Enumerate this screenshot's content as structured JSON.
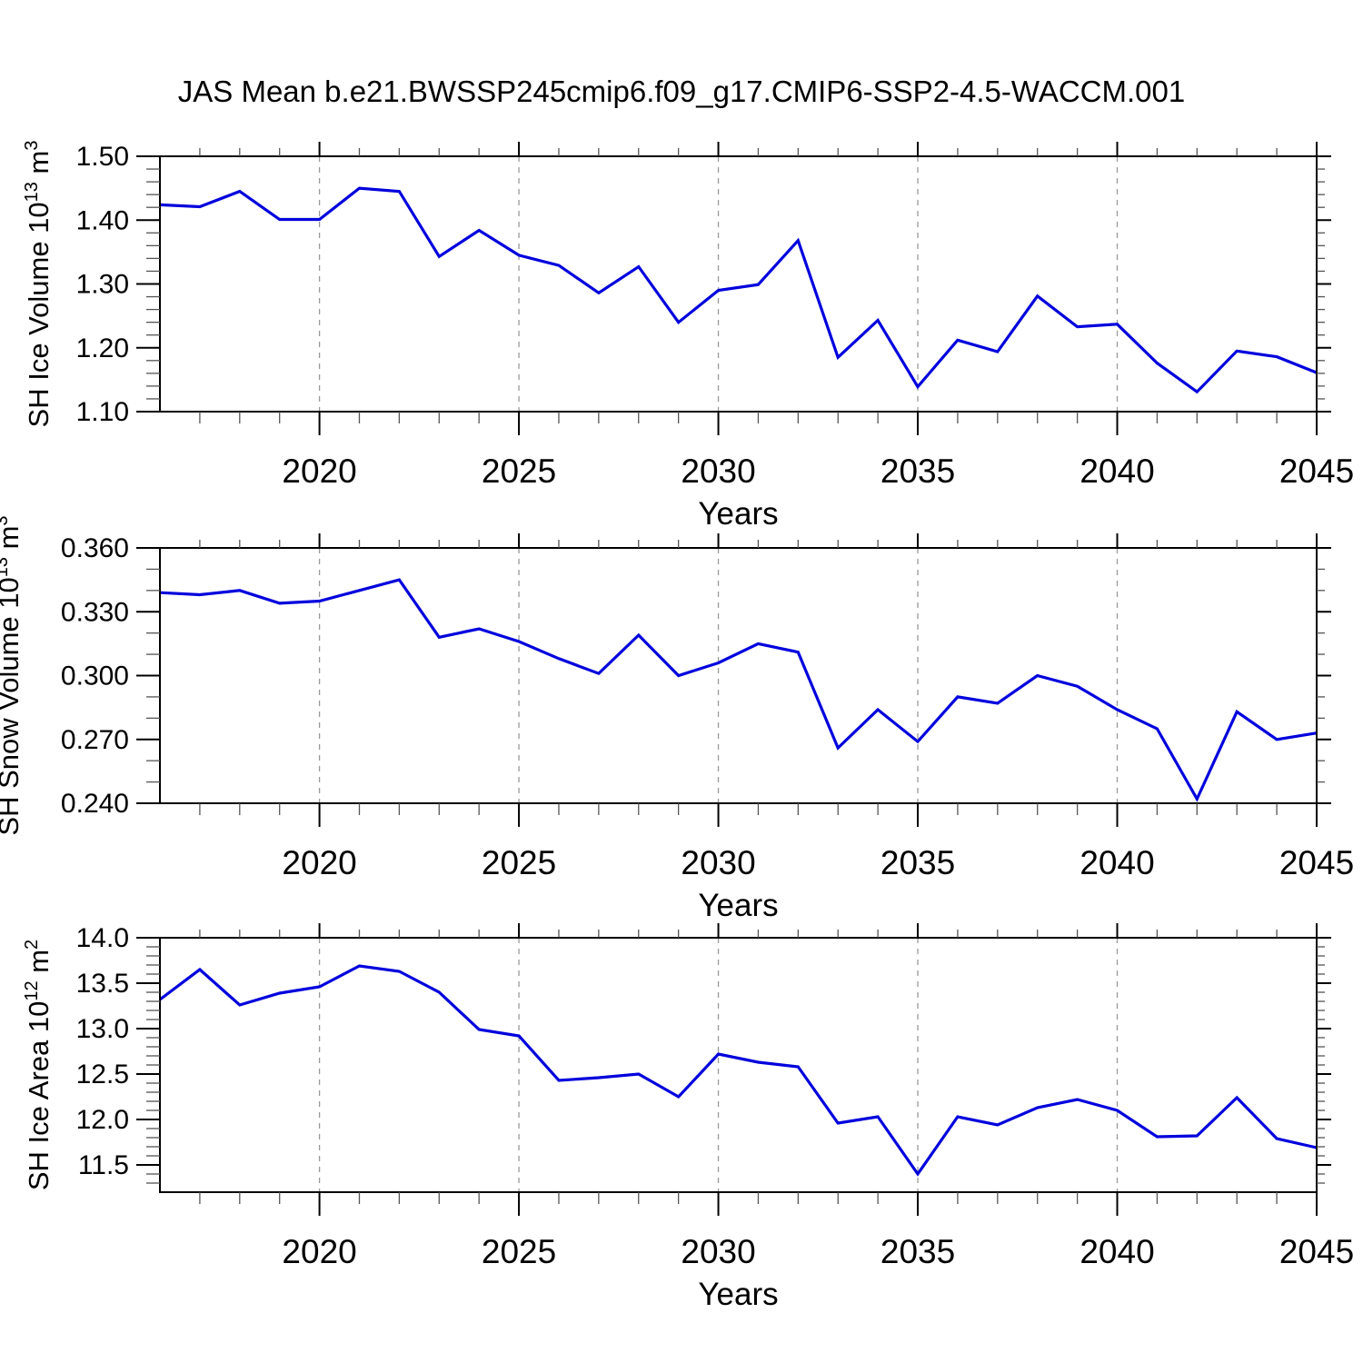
{
  "title": "JAS Mean b.e21.BWSSP245cmip6.f09_g17.CMIP6-SSP2-4.5-WACCM.001",
  "line_color": "#0000dd",
  "grid_color": "#999999",
  "axis_color": "#000000",
  "minor_tick_color": "#555555",
  "x_axis_label": "Years",
  "x_tick_labels": [
    "2020",
    "2025",
    "2030",
    "2035",
    "2040",
    "2045"
  ],
  "x_tick_years": [
    2020,
    2025,
    2030,
    2035,
    2040,
    2045
  ],
  "grid_years": [
    2020,
    2025,
    2030,
    2035,
    2040
  ],
  "chart_data": [
    {
      "type": "line",
      "name": "sh-ice-volume-panel",
      "ylabel_text": "SH Ice Volume 10^13 m^3",
      "ylabel_parts": [
        {
          "t": "SH Ice Volume 10",
          "sup": false
        },
        {
          "t": "13",
          "sup": true
        },
        {
          "t": " m",
          "sup": false
        },
        {
          "t": "3",
          "sup": true
        }
      ],
      "xlabel": "Years",
      "xlim": [
        2016,
        2045
      ],
      "ylim": [
        1.1,
        1.5
      ],
      "y_major_ticks": [
        1.1,
        1.2,
        1.3,
        1.4,
        1.5
      ],
      "y_tick_labels": [
        "1.10",
        "1.20",
        "1.30",
        "1.40",
        "1.50"
      ],
      "y_minor_step": 0.02,
      "x": [
        2016,
        2017,
        2018,
        2019,
        2020,
        2021,
        2022,
        2023,
        2024,
        2025,
        2026,
        2027,
        2028,
        2029,
        2030,
        2031,
        2032,
        2033,
        2034,
        2035,
        2036,
        2037,
        2038,
        2039,
        2040,
        2041,
        2042,
        2043,
        2044,
        2045
      ],
      "values": [
        1.424,
        1.421,
        1.445,
        1.401,
        1.401,
        1.45,
        1.445,
        1.343,
        1.384,
        1.345,
        1.329,
        1.286,
        1.327,
        1.24,
        1.29,
        1.299,
        1.368,
        1.185,
        1.243,
        1.139,
        1.212,
        1.194,
        1.281,
        1.233,
        1.237,
        1.176,
        1.131,
        1.195,
        1.186,
        1.161
      ]
    },
    {
      "type": "line",
      "name": "sh-snow-volume-panel",
      "ylabel_text": "SH Snow Volume 10^13 m^3",
      "ylabel_parts": [
        {
          "t": "SH Snow Volume 10",
          "sup": false
        },
        {
          "t": "13",
          "sup": true
        },
        {
          "t": " m",
          "sup": false
        },
        {
          "t": "3",
          "sup": true
        }
      ],
      "xlabel": "Years",
      "xlim": [
        2016,
        2045
      ],
      "ylim": [
        0.24,
        0.36
      ],
      "y_major_ticks": [
        0.24,
        0.27,
        0.3,
        0.33,
        0.36
      ],
      "y_tick_labels": [
        "0.240",
        "0.270",
        "0.300",
        "0.330",
        "0.360"
      ],
      "y_minor_step": 0.01,
      "x": [
        2016,
        2017,
        2018,
        2019,
        2020,
        2021,
        2022,
        2023,
        2024,
        2025,
        2026,
        2027,
        2028,
        2029,
        2030,
        2031,
        2032,
        2033,
        2034,
        2035,
        2036,
        2037,
        2038,
        2039,
        2040,
        2041,
        2042,
        2043,
        2044,
        2045
      ],
      "values": [
        0.339,
        0.338,
        0.34,
        0.334,
        0.335,
        0.34,
        0.345,
        0.318,
        0.322,
        0.316,
        0.308,
        0.301,
        0.319,
        0.3,
        0.306,
        0.315,
        0.311,
        0.266,
        0.284,
        0.269,
        0.29,
        0.287,
        0.3,
        0.295,
        0.284,
        0.275,
        0.242,
        0.283,
        0.27,
        0.273
      ]
    },
    {
      "type": "line",
      "name": "sh-ice-area-panel",
      "ylabel_text": "SH Ice Area 10^12 m^2",
      "ylabel_parts": [
        {
          "t": "SH Ice Area 10",
          "sup": false
        },
        {
          "t": "12",
          "sup": true
        },
        {
          "t": " m",
          "sup": false
        },
        {
          "t": "2",
          "sup": true
        }
      ],
      "xlabel": "Years",
      "xlim": [
        2016,
        2045
      ],
      "ylim": [
        11.2,
        14.0
      ],
      "y_major_ticks": [
        11.5,
        12.0,
        12.5,
        13.0,
        13.5,
        14.0
      ],
      "y_tick_labels": [
        "11.5",
        "12.0",
        "12.5",
        "13.0",
        "13.5",
        "14.0"
      ],
      "y_minor_step": 0.1,
      "x": [
        2016,
        2017,
        2018,
        2019,
        2020,
        2021,
        2022,
        2023,
        2024,
        2025,
        2026,
        2027,
        2028,
        2029,
        2030,
        2031,
        2032,
        2033,
        2034,
        2035,
        2036,
        2037,
        2038,
        2039,
        2040,
        2041,
        2042,
        2043,
        2044,
        2045
      ],
      "values": [
        13.32,
        13.65,
        13.26,
        13.39,
        13.46,
        13.69,
        13.63,
        13.4,
        12.99,
        12.92,
        12.43,
        12.46,
        12.5,
        12.25,
        12.72,
        12.63,
        12.58,
        11.96,
        12.03,
        11.4,
        12.03,
        11.94,
        12.13,
        12.22,
        12.1,
        11.81,
        11.82,
        12.24,
        11.79,
        11.69
      ]
    }
  ]
}
